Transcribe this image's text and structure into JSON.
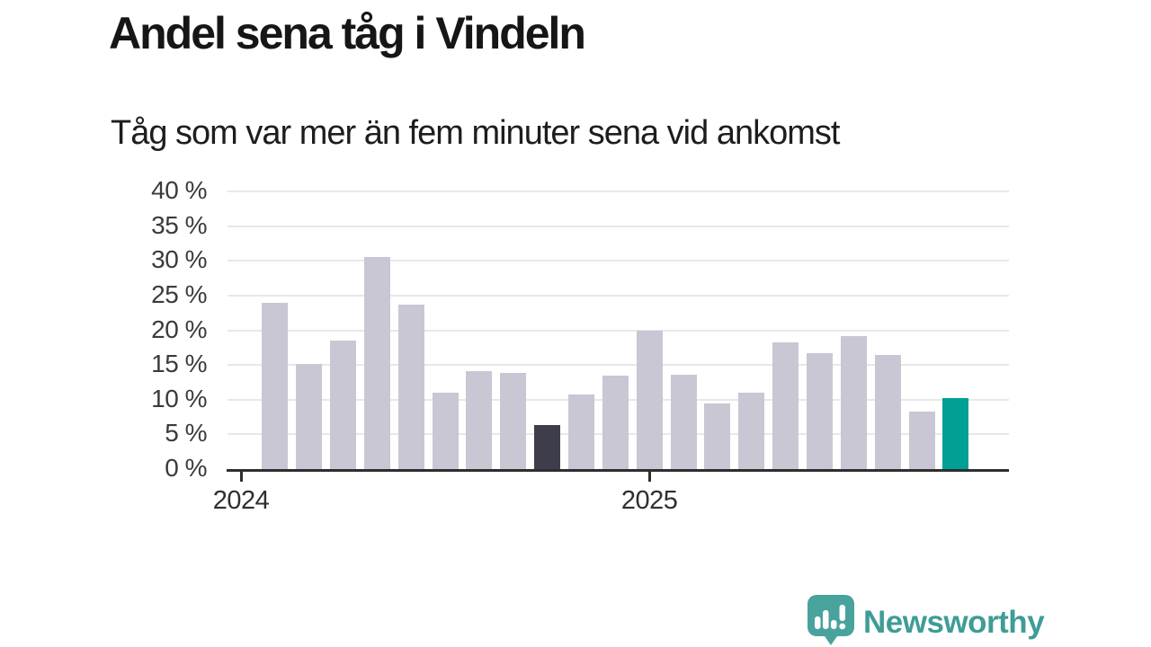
{
  "title": "Andel sena tåg i Vindeln",
  "subtitle": "Tåg som var mer än fem minuter sena vid ankomst",
  "branding": {
    "logo_text": "Newsworthy",
    "logo_text_color": "#3f9c96",
    "logo_icon_color": "#48a39c",
    "logo_icon_name": "newsworthy-speech-bubble-chart-icon"
  },
  "chart_data": {
    "type": "bar",
    "title": "Andel sena tåg i Vindeln",
    "subtitle": "Tåg som var mer än fem minuter sena vid ankomst",
    "unit": "%",
    "x": [
      "2024-01",
      "2024-02",
      "2024-03",
      "2024-04",
      "2024-05",
      "2024-06",
      "2024-07",
      "2024-08",
      "2024-09",
      "2024-10",
      "2024-11",
      "2024-12",
      "2025-01",
      "2025-02",
      "2025-03",
      "2025-04",
      "2025-05",
      "2025-06",
      "2025-07",
      "2025-08",
      "2025-09",
      "2025-10"
    ],
    "values": [
      null,
      24.0,
      15.1,
      18.5,
      30.5,
      23.7,
      11.0,
      14.1,
      13.9,
      6.4,
      10.8,
      13.5,
      20.0,
      13.6,
      9.5,
      11.0,
      18.2,
      16.7,
      19.2,
      16.4,
      8.3,
      10.2
    ],
    "ylim": [
      0,
      40
    ],
    "y_ticks": [
      0,
      5,
      10,
      15,
      20,
      25,
      30,
      35,
      40
    ],
    "y_tick_labels": [
      "0 %",
      "5 %",
      "10 %",
      "15 %",
      "20 %",
      "25 %",
      "30 %",
      "35 %",
      "40 %"
    ],
    "x_ticks": [
      {
        "label": "2024",
        "index": 0
      },
      {
        "label": "2025",
        "index": 12
      }
    ],
    "grid": true,
    "legend": null,
    "colors": {
      "default": "#c9c7d3",
      "highlight_dark": "#3e3d4c",
      "highlight_latest": "#00a094",
      "gridline": "#e8e7eb",
      "axis": "#2e2e2e"
    },
    "highlight_dark_index": 9,
    "highlight_latest_index": 21
  }
}
